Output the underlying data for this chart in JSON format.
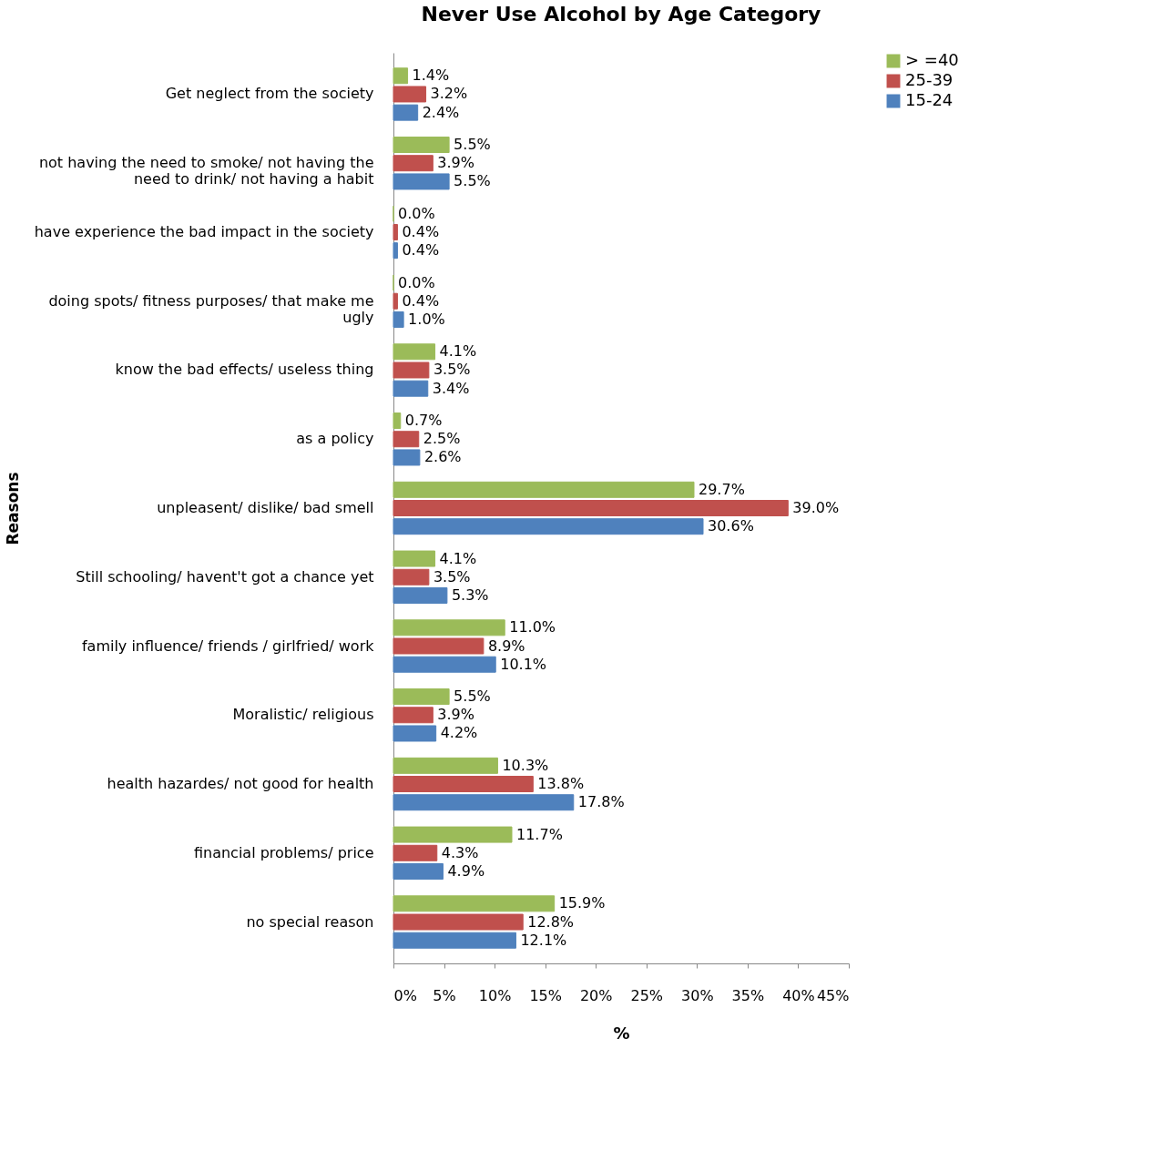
{
  "chart_data": {
    "type": "bar",
    "orientation": "horizontal",
    "title": "Never Use Alcohol by Age Category",
    "xlabel": "%",
    "ylabel": "Reasons",
    "categories": [
      "Get neglect from the society",
      "not having the need to smoke/ not having the need to drink/  not having a habit",
      "have experience the bad impact in the society",
      "doing spots/ fitness purposes/ that make me ugly",
      "know the bad effects/ useless thing",
      "as a policy",
      "unpleasent/ dislike/ bad smell",
      "Still schooling/ havent't got a chance yet",
      "family influence/ friends / girlfried/ work",
      "Moralistic/ religious",
      "health hazardes/ not good for health",
      "financial problems/ price",
      "no special reason"
    ],
    "series": [
      {
        "name": "> =40",
        "color": "#9bbb59",
        "values": [
          1.4,
          5.5,
          0.0,
          0.0,
          4.1,
          0.7,
          29.7,
          4.1,
          11.0,
          5.5,
          10.3,
          11.7,
          15.9
        ],
        "value_labels": [
          "1.4%",
          "5.5%",
          "0.0%",
          "0.0%",
          "4.1%",
          "0.7%",
          "29.7%",
          "4.1%",
          "11.0%",
          "5.5%",
          "10.3%",
          "11.7%",
          "15.9%"
        ]
      },
      {
        "name": "25-39",
        "color": "#c0504d",
        "values": [
          3.2,
          3.9,
          0.4,
          0.4,
          3.5,
          2.5,
          39.0,
          3.5,
          8.9,
          3.9,
          13.8,
          4.3,
          12.8
        ],
        "value_labels": [
          "3.2%",
          "3.9%",
          "0.4%",
          "0.4%",
          "3.5%",
          "2.5%",
          "39.0%",
          "3.5%",
          "8.9%",
          "3.9%",
          "13.8%",
          "4.3%",
          "12.8%"
        ]
      },
      {
        "name": "15-24",
        "color": "#4f81bd",
        "values": [
          2.4,
          5.5,
          0.4,
          1.0,
          3.4,
          2.6,
          30.6,
          5.3,
          10.1,
          4.2,
          17.8,
          4.9,
          12.1
        ],
        "value_labels": [
          "2.4%",
          "5.5%",
          "0.4%",
          "1.0%",
          "3.4%",
          "2.6%",
          "30.6%",
          "5.3%",
          "10.1%",
          "4.2%",
          "17.8%",
          "4.9%",
          "12.1%"
        ]
      }
    ],
    "xlim": [
      0,
      45
    ],
    "xticks": [
      {
        "value": 0,
        "label": "0%"
      },
      {
        "value": 5,
        "label": "5%"
      },
      {
        "value": 10,
        "label": "10%"
      },
      {
        "value": 15,
        "label": "15%"
      },
      {
        "value": 20,
        "label": "20%"
      },
      {
        "value": 25,
        "label": "25%"
      },
      {
        "value": 30,
        "label": "30%"
      },
      {
        "value": 35,
        "label": "35%"
      },
      {
        "value": 40,
        "label": "40%"
      },
      {
        "value": 45,
        "label": "45%"
      }
    ],
    "grid": false,
    "legend": "right"
  }
}
